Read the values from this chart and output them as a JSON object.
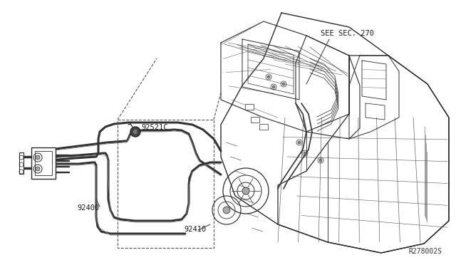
{
  "bg_color": "#ffffff",
  "line_color": "#2a2a2a",
  "fig_width": 6.4,
  "fig_height": 3.72,
  "dpi": 100,
  "diagram_ref": "R278002S",
  "label_see_sec": "SEE SEC. 270",
  "label_92521c": "92521C",
  "label_92400": "92400",
  "label_92410": "92410"
}
